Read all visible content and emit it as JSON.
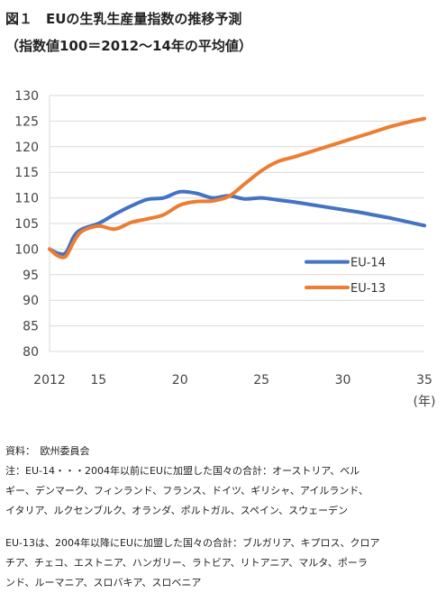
{
  "title": "図１　EUの生乳生産量指数の推移予測",
  "subtitle": "（指数値100＝2012～14年の平均値）",
  "chart_data": {
    "type": "line",
    "ylim": [
      80,
      130
    ],
    "yticks": [
      80,
      85,
      90,
      95,
      100,
      105,
      110,
      115,
      120,
      125,
      130
    ],
    "xlim": [
      2012,
      2035
    ],
    "xticks": [
      {
        "value": 2012,
        "label": "2012"
      },
      {
        "value": 2015,
        "label": "15"
      },
      {
        "value": 2020,
        "label": "20"
      },
      {
        "value": 2025,
        "label": "25"
      },
      {
        "value": 2030,
        "label": "30"
      },
      {
        "value": 2035,
        "label": "35"
      }
    ],
    "xunit": "(年)",
    "grid": true,
    "legend_position": "right-middle",
    "series": [
      {
        "name": "EU-14",
        "color": "#4472C4",
        "points": [
          [
            2012,
            100
          ],
          [
            2012.5,
            99.2
          ],
          [
            2013,
            99.3
          ],
          [
            2013.5,
            102.5
          ],
          [
            2014,
            103.9
          ],
          [
            2015,
            105.0
          ],
          [
            2016,
            106.8
          ],
          [
            2017,
            108.4
          ],
          [
            2018,
            109.7
          ],
          [
            2019,
            110.0
          ],
          [
            2020,
            111.2
          ],
          [
            2021,
            110.9
          ],
          [
            2022,
            110.0
          ],
          [
            2023,
            110.4
          ],
          [
            2024,
            109.8
          ],
          [
            2025,
            110.0
          ],
          [
            2026,
            109.6
          ],
          [
            2027,
            109.2
          ],
          [
            2028,
            108.7
          ],
          [
            2029,
            108.2
          ],
          [
            2030,
            107.7
          ],
          [
            2031,
            107.2
          ],
          [
            2032,
            106.6
          ],
          [
            2033,
            106.0
          ],
          [
            2034,
            105.3
          ],
          [
            2035,
            104.6
          ]
        ]
      },
      {
        "name": "EU-13",
        "color": "#ED7D31",
        "points": [
          [
            2012,
            100
          ],
          [
            2012.5,
            98.7
          ],
          [
            2013,
            98.6
          ],
          [
            2013.5,
            101.5
          ],
          [
            2014,
            103.5
          ],
          [
            2015,
            104.5
          ],
          [
            2016,
            103.9
          ],
          [
            2017,
            105.2
          ],
          [
            2018,
            105.9
          ],
          [
            2019,
            106.7
          ],
          [
            2020,
            108.6
          ],
          [
            2021,
            109.3
          ],
          [
            2022,
            109.4
          ],
          [
            2023,
            110.3
          ],
          [
            2024,
            112.8
          ],
          [
            2025,
            115.3
          ],
          [
            2026,
            117.1
          ],
          [
            2027,
            118.0
          ],
          [
            2028,
            119.0
          ],
          [
            2029,
            120.0
          ],
          [
            2030,
            121.0
          ],
          [
            2031,
            122.0
          ],
          [
            2032,
            123.0
          ],
          [
            2033,
            124.0
          ],
          [
            2034,
            124.8
          ],
          [
            2035,
            125.5
          ]
        ]
      }
    ]
  },
  "notes": {
    "source": "資料：　欧州委員会",
    "note1_line1": "注：EU-14・・・2004年以前にEUに加盟した国々の合計：オーストリア、ベル",
    "note1_line2": "ギー、デンマーク、フィンランド、フランス、ドイツ、ギリシャ、アイルランド、",
    "note1_line3": "イタリア、ルクセンブルク、オランダ、ポルトガル、スペイン、スウェーデン",
    "note2_line1": "EU-13は、2004年以降にEUに加盟した国々の合計：ブルガリア、キプロス、クロア",
    "note2_line2": "チア、チェコ、エストニア、ハンガリー、ラトビア、リトアニア、マルタ、ポーラ",
    "note2_line3": "ンド、ルーマニア、スロバキア、スロベニア"
  }
}
